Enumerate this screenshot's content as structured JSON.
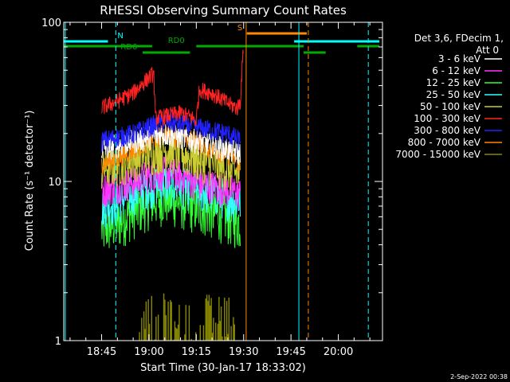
{
  "footer_date": "2-Sep-2022 00:38",
  "chart_data": {
    "type": "line",
    "title": "RHESSI Observing Summary Count Rates",
    "xlabel": "Start Time (30-Jan-17 18:33:02)",
    "ylabel": "Count Rate (s⁻¹ detector⁻¹)",
    "yscale": "log",
    "ylim": [
      1,
      100
    ],
    "xlim_minutes": [
      33.0,
      134.0
    ],
    "x_ticks": [
      {
        "label": "18:45",
        "m": 45
      },
      {
        "label": "19:00",
        "m": 60
      },
      {
        "label": "19:15",
        "m": 75
      },
      {
        "label": "19:30",
        "m": 90
      },
      {
        "label": "19:45",
        "m": 105
      },
      {
        "label": "20:00",
        "m": 120
      }
    ],
    "y_ticks": [
      {
        "label": "1",
        "v": 1
      },
      {
        "label": "10",
        "v": 10
      },
      {
        "label": "100",
        "v": 100
      }
    ],
    "legend_header": [
      "Det 3,6, FDecim 1,",
      "Att 0"
    ],
    "series": [
      {
        "name": "3 - 6 keV",
        "color": "#ffffff",
        "kind": "hist",
        "x": [
          45,
          50,
          55,
          60,
          65,
          70,
          75,
          80,
          85,
          89
        ],
        "y": [
          16,
          17,
          18,
          19,
          20,
          19,
          18,
          17,
          16,
          15
        ],
        "noise": 0.18
      },
      {
        "name": "6 - 12 keV",
        "color": "#ff33ff",
        "kind": "hist",
        "x": [
          45,
          50,
          55,
          60,
          65,
          70,
          75,
          80,
          85,
          89
        ],
        "y": [
          9,
          9.5,
          10,
          11,
          11.5,
          11,
          10,
          9.5,
          9,
          8.5
        ],
        "noise": 0.25
      },
      {
        "name": "12 - 25 keV",
        "color": "#33ff33",
        "kind": "hist",
        "x": [
          45,
          50,
          55,
          60,
          65,
          70,
          75,
          80,
          85,
          89
        ],
        "y": [
          5,
          5.5,
          6.5,
          7.5,
          8,
          7.5,
          7,
          6.5,
          6,
          5.5
        ],
        "noise": 0.35
      },
      {
        "name": "25 - 50 keV",
        "color": "#33ffff",
        "kind": "hist",
        "x": [
          45,
          50,
          55,
          60,
          65,
          70,
          75,
          80,
          85,
          89
        ],
        "y": [
          7,
          7.5,
          8.5,
          9.5,
          10,
          9.5,
          9,
          8.5,
          8,
          7.5
        ],
        "noise": 0.3
      },
      {
        "name": "50 - 100 keV",
        "color": "#cccc33",
        "kind": "hist",
        "x": [
          45,
          50,
          55,
          60,
          65,
          70,
          75,
          80,
          85,
          89
        ],
        "y": [
          12,
          13,
          14,
          15,
          16,
          15,
          14,
          13,
          12,
          11
        ],
        "noise": 0.3
      },
      {
        "name": "100 - 300 keV",
        "color": "#ff2222",
        "kind": "hist",
        "x": [
          45,
          50,
          55,
          60,
          61.5,
          62,
          66,
          70,
          74,
          75,
          76,
          80,
          85,
          88,
          89,
          90
        ],
        "y": [
          29,
          32,
          36,
          45,
          48,
          25,
          26,
          27,
          25,
          24,
          38,
          36,
          31,
          29,
          32,
          70
        ],
        "noise": 0.12
      },
      {
        "name": "300 - 800 keV",
        "color": "#2222ff",
        "kind": "hist",
        "x": [
          45,
          50,
          55,
          60,
          65,
          70,
          75,
          80,
          85,
          89
        ],
        "y": [
          18,
          19,
          20,
          22,
          24,
          23,
          22,
          21,
          20,
          18
        ],
        "noise": 0.15
      },
      {
        "name": "800 - 7000 keV",
        "color": "#ff8800",
        "kind": "hist",
        "x": [
          45,
          50,
          55,
          60,
          65,
          70,
          75,
          80,
          85,
          89
        ],
        "y": [
          13,
          14,
          16,
          18,
          20,
          19,
          18,
          16,
          15,
          13
        ],
        "noise": 0.15
      },
      {
        "name": "7000 - 15000 keV",
        "color": "#888800",
        "kind": "spikes",
        "x_range": [
          57,
          88
        ],
        "max": 2.0
      }
    ],
    "flag_lines": [
      {
        "color": "#00ffff",
        "y_frac": 0.06,
        "segments": [
          [
            33,
            47
          ],
          [
            106,
            133
          ]
        ],
        "label": "N",
        "label_m": 50
      },
      {
        "color": "#ff8800",
        "y_frac": 0.035,
        "segments": [
          [
            91,
            110
          ]
        ],
        "label": "S",
        "label_m": 88
      },
      {
        "color": "#00aa00",
        "y_frac": 0.075,
        "segments": [
          [
            33,
            61
          ],
          [
            75,
            109
          ],
          [
            126,
            133
          ]
        ],
        "label": "RD0",
        "label_m": 66
      },
      {
        "color": "#00aa00",
        "y_frac": 0.095,
        "segments": [
          [
            58,
            73
          ],
          [
            109,
            116
          ]
        ],
        "label": "RD6",
        "label_m": 51
      }
    ],
    "event_lines": [
      {
        "m": 33.5,
        "color": "#00ffff",
        "dashed": false
      },
      {
        "m": 49.5,
        "color": "#00ffff",
        "dashed": true
      },
      {
        "m": 90.8,
        "color": "#ff8800",
        "dashed": false
      },
      {
        "m": 107.5,
        "color": "#00ffff",
        "dashed": false
      },
      {
        "m": 110.5,
        "color": "#ff8800",
        "dashed": true
      },
      {
        "m": 129.5,
        "color": "#00ffff",
        "dashed": true
      }
    ]
  }
}
